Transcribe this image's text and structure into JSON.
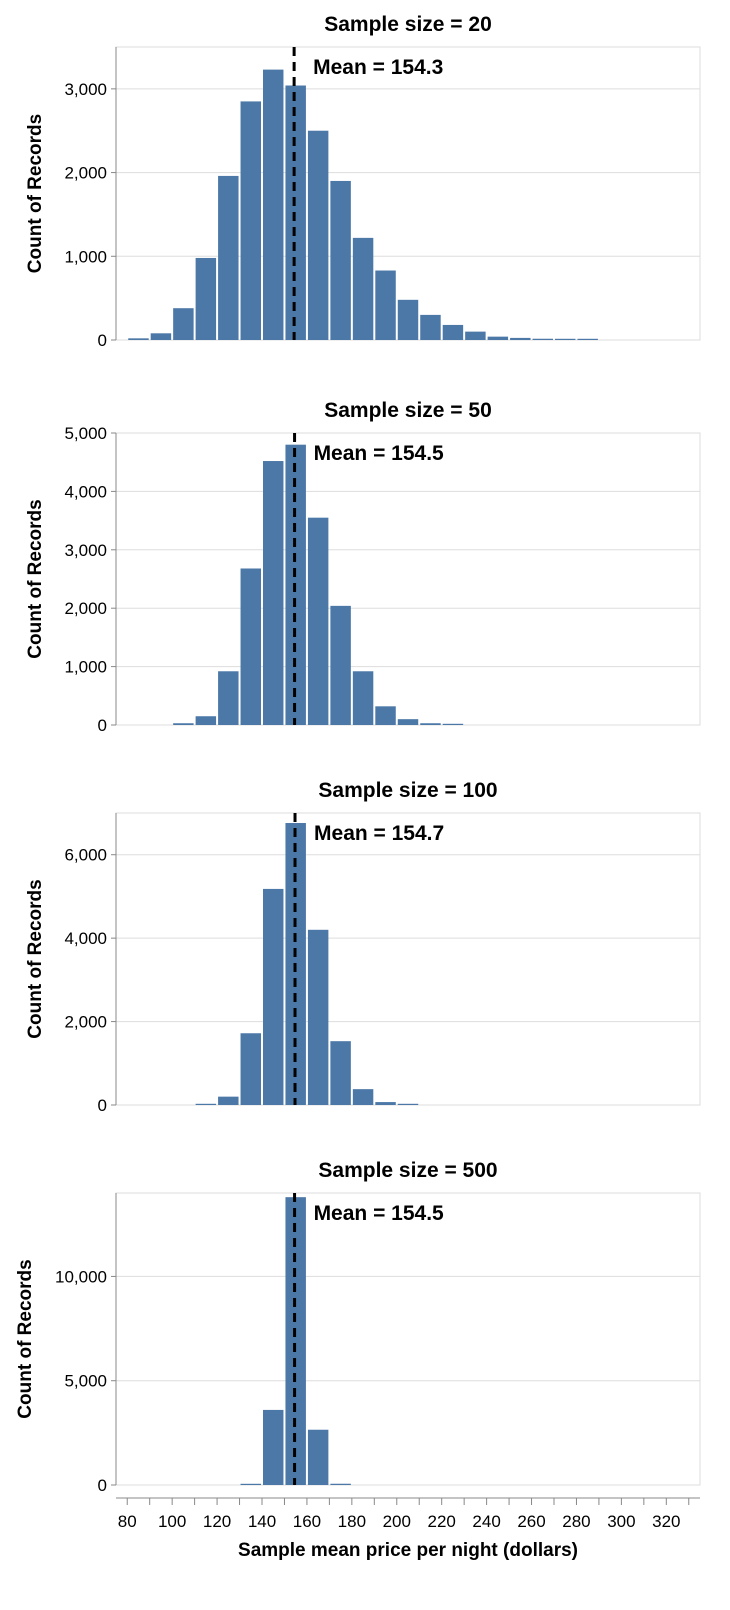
{
  "chart_data": [
    {
      "type": "bar",
      "title": "Sample size = 20",
      "ylabel": "Count of Records",
      "xlabel": "",
      "mean_label": "Mean = 154.3",
      "mean_value": 154.3,
      "ylim": [
        0,
        3500
      ],
      "yticks": [
        0,
        1000,
        2000,
        3000
      ],
      "ytick_labels": [
        "0",
        "1,000",
        "2,000",
        "3,000"
      ],
      "bin_starts": [
        80,
        90,
        100,
        110,
        120,
        130,
        140,
        150,
        160,
        170,
        180,
        190,
        200,
        210,
        220,
        230,
        240,
        250,
        260,
        270,
        280
      ],
      "bin_width": 10,
      "values": [
        20,
        80,
        380,
        980,
        1960,
        2850,
        3230,
        3040,
        2500,
        1900,
        1220,
        830,
        480,
        300,
        180,
        100,
        40,
        25,
        15,
        10,
        5
      ]
    },
    {
      "type": "bar",
      "title": "Sample size = 50",
      "ylabel": "Count of Records",
      "xlabel": "",
      "mean_label": "Mean = 154.5",
      "mean_value": 154.5,
      "ylim": [
        0,
        5000
      ],
      "yticks": [
        0,
        1000,
        2000,
        3000,
        4000,
        5000
      ],
      "ytick_labels": [
        "0",
        "1,000",
        "2,000",
        "3,000",
        "4,000",
        "5,000"
      ],
      "bin_starts": [
        100,
        110,
        120,
        130,
        140,
        150,
        160,
        170,
        180,
        190,
        200,
        210,
        220
      ],
      "bin_width": 10,
      "values": [
        30,
        150,
        920,
        2680,
        4520,
        4800,
        3550,
        2040,
        920,
        320,
        100,
        30,
        10
      ]
    },
    {
      "type": "bar",
      "title": "Sample size = 100",
      "ylabel": "Count of Records",
      "xlabel": "",
      "mean_label": "Mean = 154.7",
      "mean_value": 154.7,
      "ylim": [
        0,
        7000
      ],
      "yticks": [
        0,
        2000,
        4000,
        6000
      ],
      "ytick_labels": [
        "0",
        "2,000",
        "4,000",
        "6,000"
      ],
      "bin_starts": [
        110,
        120,
        130,
        140,
        150,
        160,
        170,
        180,
        190,
        200
      ],
      "bin_width": 10,
      "values": [
        20,
        200,
        1720,
        5180,
        6760,
        4200,
        1530,
        380,
        70,
        10
      ]
    },
    {
      "type": "bar",
      "title": "Sample size = 500",
      "ylabel": "Count of Records",
      "xlabel": "Sample mean price per night (dollars)",
      "mean_label": "Mean = 154.5",
      "mean_value": 154.5,
      "ylim": [
        0,
        14000
      ],
      "yticks": [
        0,
        5000,
        10000
      ],
      "ytick_labels": [
        "0",
        "5,000",
        "10,000"
      ],
      "xticks": [
        80,
        100,
        120,
        140,
        160,
        180,
        200,
        220,
        240,
        260,
        280,
        300,
        320
      ],
      "xtick_labels": [
        "80",
        "100",
        "120",
        "140",
        "160",
        "180",
        "200",
        "220",
        "240",
        "260",
        "280",
        "300",
        "320"
      ],
      "bin_starts": [
        130,
        140,
        150,
        160,
        170
      ],
      "bin_width": 10,
      "values": [
        50,
        3600,
        13800,
        2650,
        60
      ]
    }
  ],
  "colors": {
    "bar": "#4c78a8",
    "grid": "#dddddd",
    "axis": "#888888",
    "mean_line": "#000000"
  }
}
